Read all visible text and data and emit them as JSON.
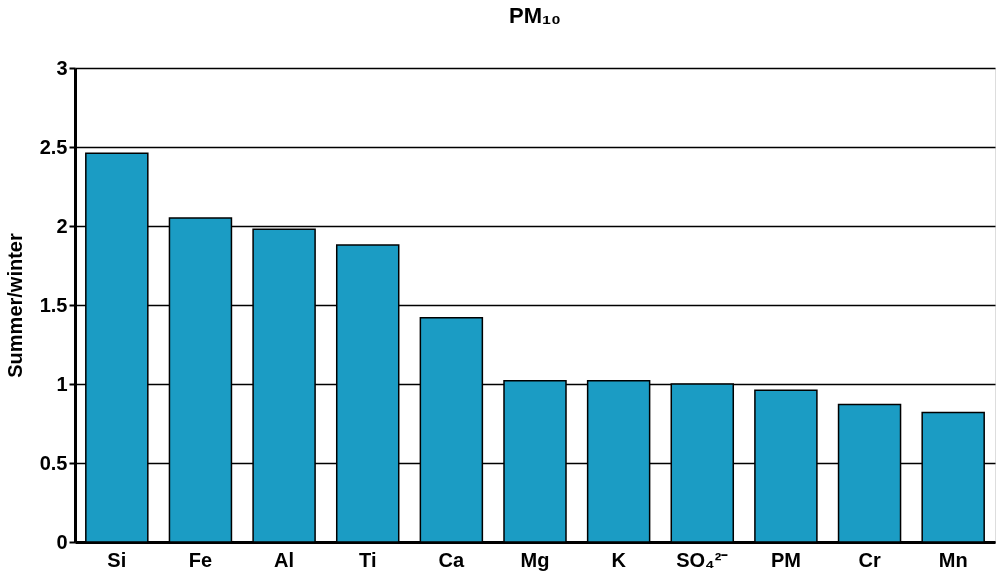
{
  "chart_data": {
    "type": "bar",
    "title": "PM₁₀",
    "ylabel": "Summer/winter",
    "categories": [
      "Si",
      "Fe",
      "Al",
      "Ti",
      "Ca",
      "Mg",
      "K",
      "SO₄²⁻",
      "PM",
      "Cr",
      "Mn"
    ],
    "values": [
      2.46,
      2.05,
      1.98,
      1.88,
      1.42,
      1.02,
      1.02,
      1.0,
      0.96,
      0.87,
      0.82
    ],
    "color": "#1b9cc4",
    "ylim": [
      0,
      3
    ],
    "yticks": [
      0,
      0.5,
      1,
      1.5,
      2,
      2.5,
      3
    ],
    "grid": "y"
  }
}
